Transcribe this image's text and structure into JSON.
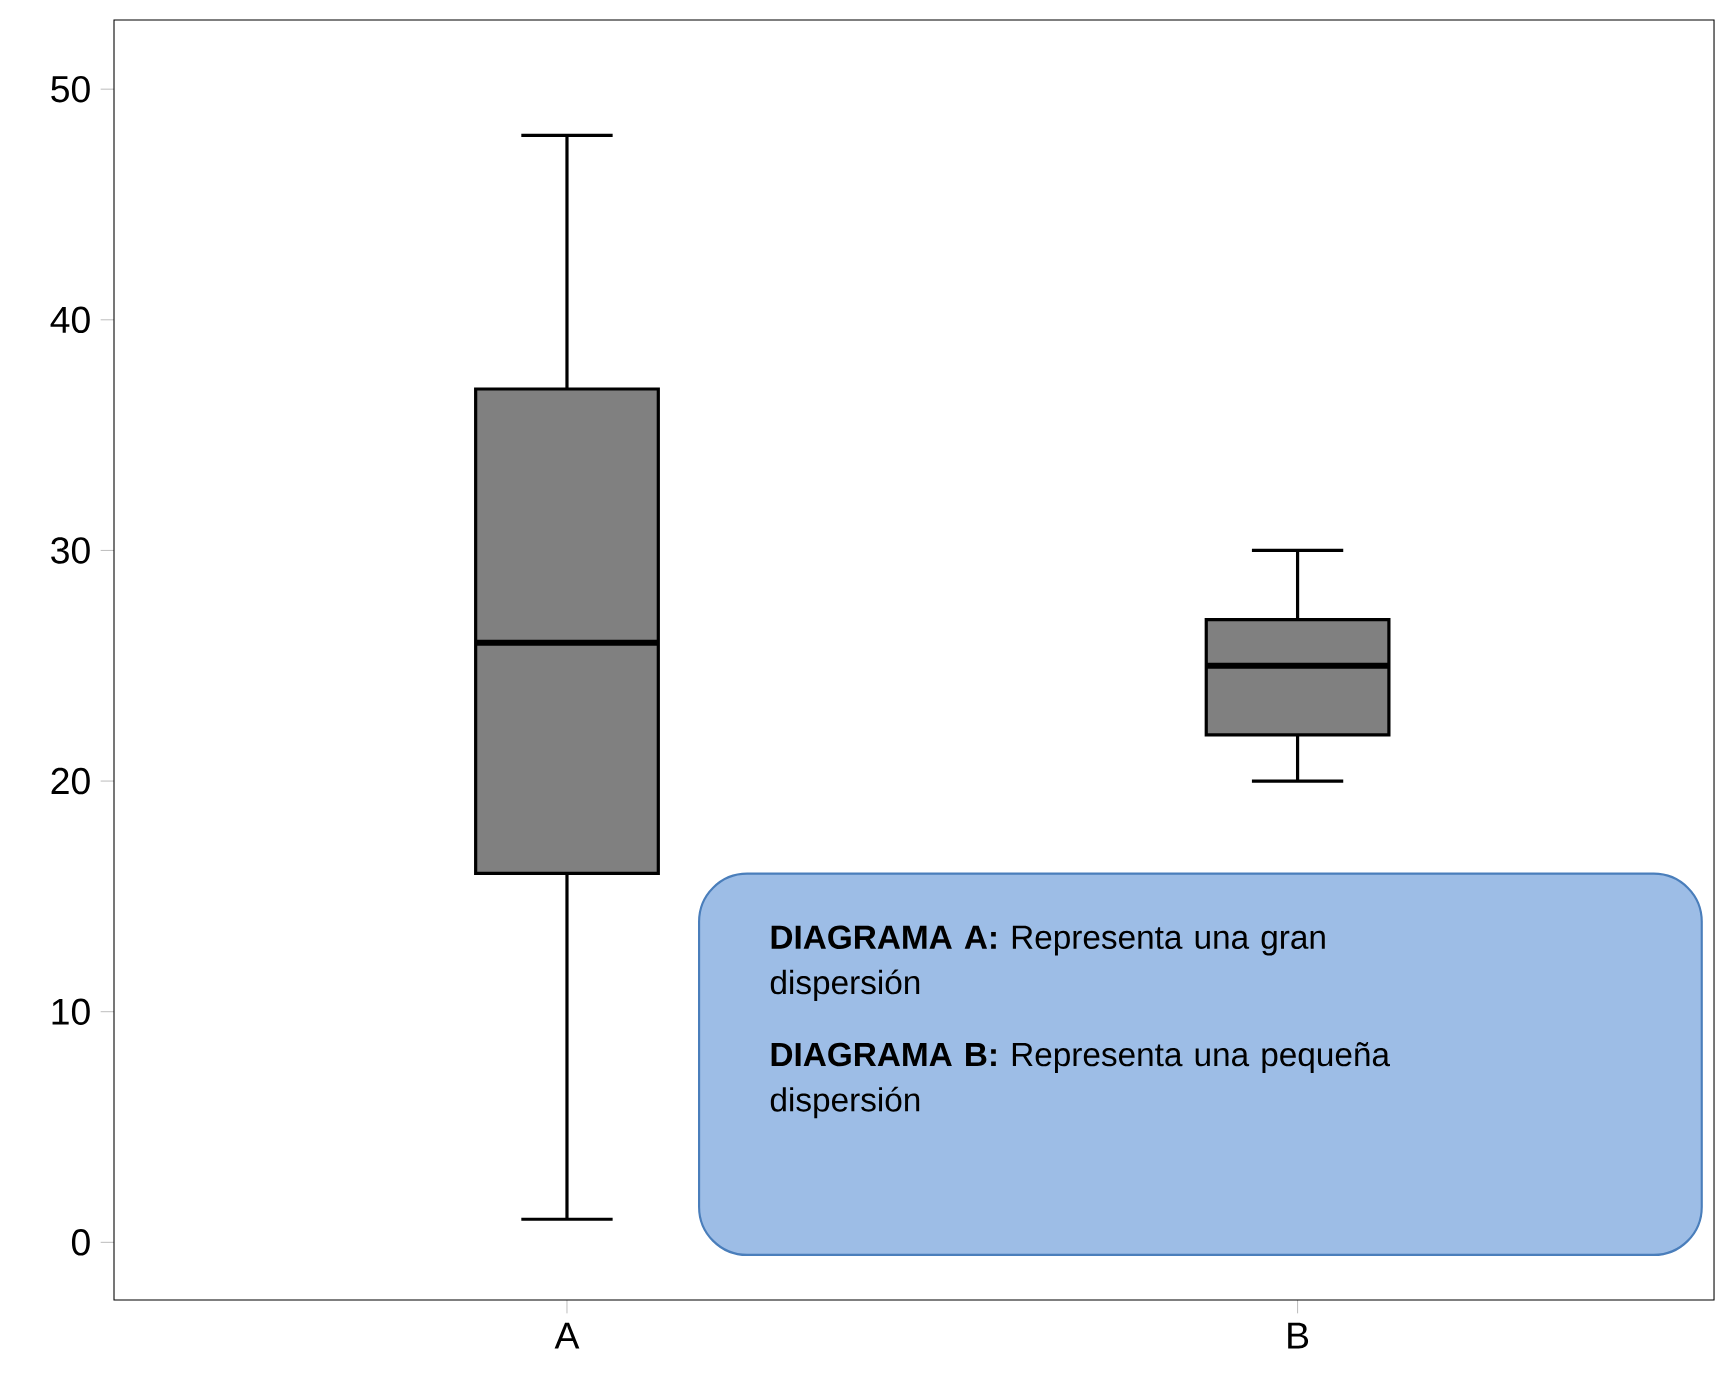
{
  "chart_data": {
    "type": "box",
    "categories": [
      "A",
      "B"
    ],
    "boxes": [
      {
        "low": 1,
        "q1": 16,
        "median": 26,
        "q3": 37,
        "high": 48
      },
      {
        "low": 20,
        "q1": 22,
        "median": 25,
        "q3": 27,
        "high": 30
      }
    ],
    "color": "#808080",
    "ylim": [
      -2.5,
      53
    ],
    "yticks": [
      0,
      10,
      20,
      30,
      40,
      50
    ],
    "grid": false,
    "annotations": [
      "**DIAGRAMA A:** Representa una gran dispersión",
      "**DIAGRAMA B:** Representa una pequeña dispersión"
    ]
  }
}
